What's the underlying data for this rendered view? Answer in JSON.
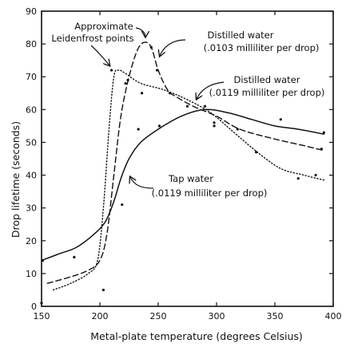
{
  "chart_data": {
    "type": "scatter",
    "title": "",
    "xlabel": "Metal-plate temperature (degrees Celsius)",
    "ylabel": "Drop lifetime (seconds)",
    "xlim": [
      150,
      400
    ],
    "ylim": [
      0,
      90
    ],
    "xticks": [
      150,
      200,
      250,
      300,
      350,
      400
    ],
    "yticks": [
      0,
      10,
      20,
      30,
      40,
      50,
      60,
      70,
      80,
      90
    ],
    "grid": false,
    "legend": "none",
    "annotations": {
      "leidenfrost": [
        "Approximate",
        "Leidenfrost points"
      ],
      "distilled_0103": [
        "Distilled water",
        "(.0103 milliliter per drop)"
      ],
      "distilled_0119": [
        "Distilled water",
        "(.0119 milliliter per drop)"
      ],
      "tap_0119": [
        "Tap water",
        "(.0119 milliliter per drop)"
      ]
    },
    "series": [
      {
        "key": "distilled_0103",
        "style": "dashed",
        "color": "#111111",
        "curve": [
          [
            155,
            7
          ],
          [
            175,
            9
          ],
          [
            190,
            11
          ],
          [
            200,
            14
          ],
          [
            206,
            22
          ],
          [
            212,
            40
          ],
          [
            218,
            58
          ],
          [
            225,
            70
          ],
          [
            232,
            78
          ],
          [
            238,
            80.5
          ],
          [
            244,
            79
          ],
          [
            250,
            72
          ],
          [
            258,
            66
          ],
          [
            265,
            64
          ],
          [
            280,
            61
          ],
          [
            300,
            58
          ],
          [
            320,
            54
          ],
          [
            350,
            51
          ],
          [
            375,
            49
          ],
          [
            392,
            47.5
          ]
        ],
        "points": [
          [
            224,
            69
          ],
          [
            244,
            79
          ],
          [
            249,
            72
          ],
          [
            298,
            55
          ],
          [
            318,
            54
          ],
          [
            334,
            47
          ],
          [
            355,
            57
          ],
          [
            390,
            48
          ]
        ]
      },
      {
        "key": "distilled_0119",
        "style": "dotted",
        "color": "#111111",
        "curve": [
          [
            160,
            5
          ],
          [
            175,
            7
          ],
          [
            190,
            10
          ],
          [
            198,
            14
          ],
          [
            203,
            30
          ],
          [
            208,
            55
          ],
          [
            212,
            70
          ],
          [
            216,
            72
          ],
          [
            222,
            71
          ],
          [
            235,
            68
          ],
          [
            255,
            66
          ],
          [
            275,
            63
          ],
          [
            295,
            59
          ],
          [
            315,
            53
          ],
          [
            335,
            47
          ],
          [
            355,
            42
          ],
          [
            375,
            40
          ],
          [
            392,
            38.5
          ]
        ],
        "points": [
          [
            150,
            1
          ],
          [
            203,
            5
          ],
          [
            210,
            72
          ],
          [
            222,
            68
          ],
          [
            236,
            65
          ],
          [
            260,
            65
          ],
          [
            275,
            61
          ],
          [
            290,
            61
          ],
          [
            370,
            39
          ],
          [
            385,
            40
          ]
        ]
      },
      {
        "key": "tap_0119",
        "style": "solid",
        "color": "#111111",
        "curve": [
          [
            150,
            14
          ],
          [
            165,
            16
          ],
          [
            180,
            18
          ],
          [
            195,
            22
          ],
          [
            205,
            26
          ],
          [
            212,
            32
          ],
          [
            218,
            39
          ],
          [
            225,
            45
          ],
          [
            235,
            50
          ],
          [
            250,
            54
          ],
          [
            270,
            58
          ],
          [
            290,
            60
          ],
          [
            310,
            59
          ],
          [
            330,
            57
          ],
          [
            350,
            55
          ],
          [
            370,
            54
          ],
          [
            392,
            52.5
          ]
        ],
        "points": [
          [
            151,
            14
          ],
          [
            178,
            15
          ],
          [
            219,
            31
          ],
          [
            233,
            54
          ],
          [
            251,
            55
          ],
          [
            298,
            56
          ],
          [
            392,
            53
          ]
        ]
      }
    ]
  }
}
